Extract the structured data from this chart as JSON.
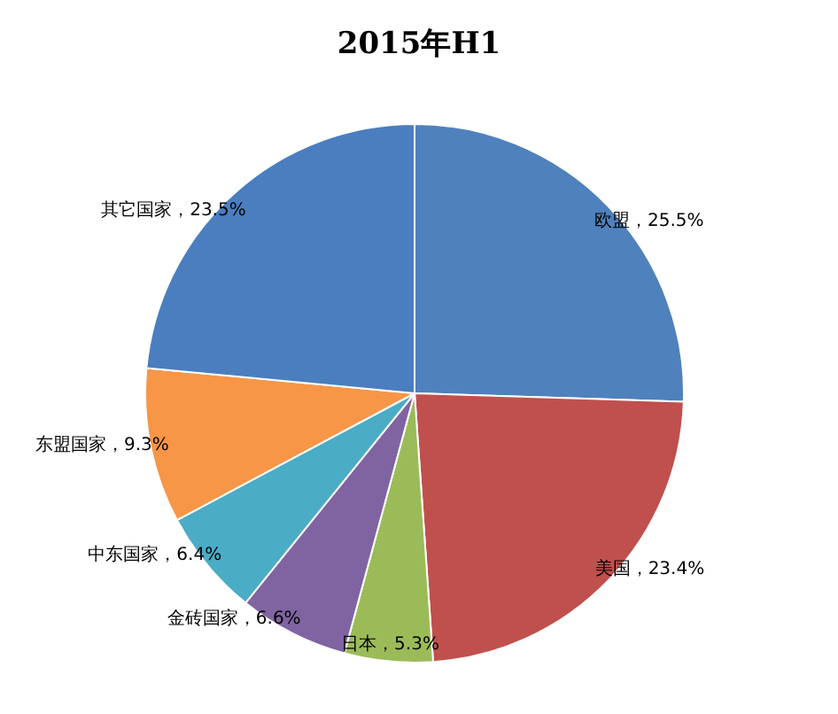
{
  "chart_data": {
    "type": "pie",
    "title": "2015年H1",
    "categories": [
      "欧盟",
      "美国",
      "日本",
      "金砖国家",
      "中东国家",
      "东盟国家",
      "其它国家"
    ],
    "values": [
      25.5,
      23.4,
      5.3,
      6.6,
      6.4,
      9.3,
      23.5
    ],
    "value_labels": [
      "25.5%",
      "23.4%",
      "5.3%",
      "6.6%",
      "6.4%",
      "9.3%",
      "23.5%"
    ],
    "colors": [
      "#4f81bd",
      "#c0504d",
      "#9bbb59",
      "#8064a2",
      "#4bacc6",
      "#f79646",
      "#4a7ebf"
    ]
  }
}
